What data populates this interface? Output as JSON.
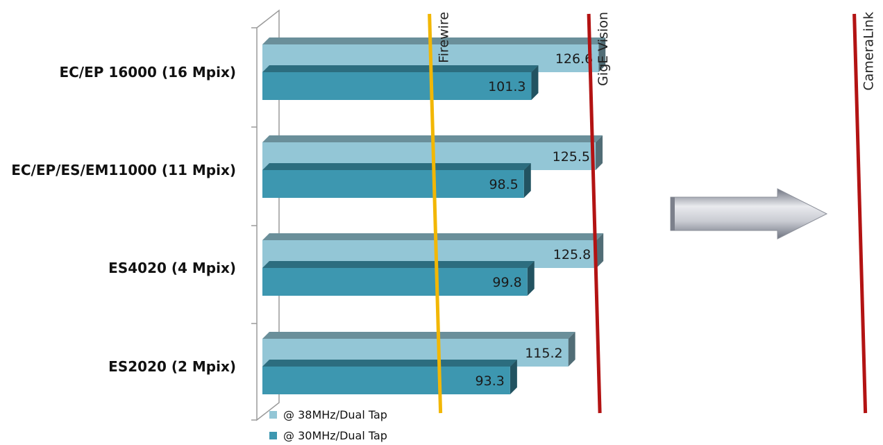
{
  "chart_data": {
    "type": "bar",
    "orientation": "horizontal",
    "categories": [
      "EC/EP 16000 (16 Mpix)",
      "EC/EP/ES/EM11000 (11 Mpix)",
      "ES4020 (4  Mpix)",
      "ES2020 (2 Mpix)"
    ],
    "series": [
      {
        "name": "@ 38MHz/Dual Tap",
        "values": [
          126.6,
          125.5,
          125.8,
          115.2
        ],
        "color": "#93c6d6"
      },
      {
        "name": "@ 30MHz/Dual Tap",
        "values": [
          101.3,
          98.5,
          99.8,
          93.3
        ],
        "color": "#3d97b0"
      }
    ],
    "data_labels": {
      "s0": [
        "126.6",
        "125.5",
        "125.8",
        "115.2"
      ],
      "s1": [
        "101.3",
        "98.5",
        "99.8",
        "93.3"
      ]
    },
    "reference_lines": [
      {
        "label": "Firewire",
        "value": 65,
        "color": "#f2b705"
      },
      {
        "label": "GigE Vision",
        "value": 125,
        "color": "#b31313"
      },
      {
        "label": "CameraLink",
        "value": 225,
        "color": "#b31313"
      }
    ],
    "xlim": [
      0,
      230
    ],
    "grid": false,
    "legend_position": "bottom-left",
    "title": "",
    "xlabel": "",
    "ylabel": "",
    "arrow_icon": "right-arrow-icon"
  }
}
